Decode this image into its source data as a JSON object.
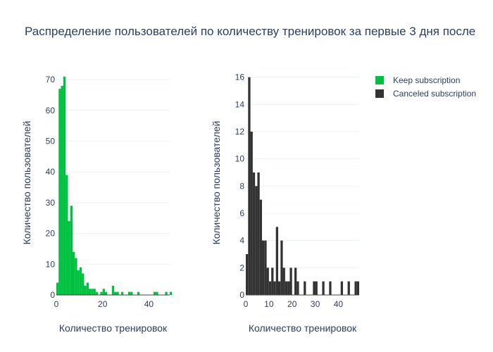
{
  "chart_data": {
    "title": "Распределение пользователей по количеству тренировок за первые 3 дня после",
    "legend": {
      "position": "top-right"
    },
    "colors": {
      "keep": "#00c040",
      "canceled": "#333333",
      "grid": "#ebf0f8"
    },
    "subplots": [
      {
        "type": "bar",
        "series_name": "Keep subscription",
        "color": "#00c040",
        "xlabel": "Количество тренировок",
        "ylabel": "Количество пользователей",
        "xlim": [
          0,
          49
        ],
        "ylim": [
          0,
          73
        ],
        "xticks": [
          0,
          20,
          40
        ],
        "yticks": [
          0,
          10,
          20,
          30,
          40,
          50,
          60,
          70
        ],
        "x": [
          0,
          1,
          2,
          3,
          4,
          5,
          6,
          7,
          8,
          9,
          10,
          11,
          12,
          13,
          14,
          15,
          16,
          17,
          19,
          20,
          21,
          24,
          25,
          26,
          28,
          31,
          32,
          35,
          42,
          43,
          47,
          49
        ],
        "values": [
          4,
          67,
          68,
          71,
          39,
          24,
          29,
          14,
          12,
          8,
          9,
          7,
          3,
          4,
          2,
          2,
          2,
          1,
          1,
          2,
          1,
          3,
          1,
          1,
          1,
          1,
          1,
          1,
          1,
          1,
          1,
          1
        ]
      },
      {
        "type": "bar",
        "series_name": "Canceled subscription",
        "color": "#333333",
        "xlabel": "Количество тренировок",
        "ylabel": "Количество пользователей",
        "xlim": [
          0,
          49
        ],
        "ylim": [
          0,
          16.5
        ],
        "xticks": [
          0,
          10,
          20,
          30,
          40
        ],
        "yticks": [
          0,
          2,
          4,
          6,
          8,
          10,
          12,
          14,
          16
        ],
        "x": [
          0,
          1,
          2,
          3,
          4,
          5,
          6,
          7,
          8,
          9,
          10,
          11,
          12,
          13,
          14,
          15,
          16,
          17,
          18,
          19,
          21,
          22,
          25,
          29,
          30,
          33,
          36,
          41,
          44,
          47,
          48
        ],
        "values": [
          3,
          16,
          12,
          9,
          8,
          9,
          7,
          4,
          4,
          2,
          1,
          2,
          1,
          5,
          1,
          4,
          2,
          1,
          1,
          2,
          2,
          1,
          1,
          1,
          1,
          1,
          1,
          1,
          1,
          1,
          1
        ]
      }
    ]
  }
}
